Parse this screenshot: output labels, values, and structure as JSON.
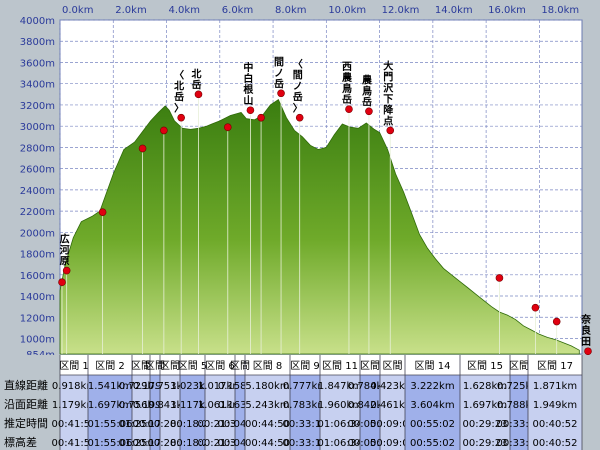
{
  "chart_data": {
    "type": "area",
    "title": "",
    "xlabel": "",
    "ylabel": "",
    "x_ticks": [
      "0.0km",
      "2.0km",
      "4.0km",
      "6.0km",
      "8.0km",
      "10.0km",
      "12.0km",
      "14.0km",
      "16.0km",
      "18.0km"
    ],
    "x_tick_values": [
      0,
      2,
      4,
      6,
      8,
      10,
      12,
      14,
      16,
      18
    ],
    "xlim": [
      0,
      19.6
    ],
    "y_ticks": [
      "4000m",
      "3800m",
      "3600m",
      "3400m",
      "3200m",
      "3000m",
      "2800m",
      "2600m",
      "2400m",
      "2200m",
      "2000m",
      "1800m",
      "1600m",
      "1400m",
      "1200m",
      "1000m",
      "854m"
    ],
    "y_tick_values": [
      4000,
      3800,
      3600,
      3400,
      3200,
      3000,
      2800,
      2600,
      2400,
      2200,
      2000,
      1800,
      1600,
      1400,
      1200,
      1000,
      854
    ],
    "ylim": [
      854,
      4000
    ],
    "grid": true,
    "elevation_profile": {
      "x": [
        0,
        0.2,
        0.5,
        0.8,
        1.2,
        1.5,
        2.0,
        2.4,
        2.8,
        3.1,
        3.4,
        3.7,
        3.95,
        4.1,
        4.3,
        4.6,
        4.9,
        5.2,
        5.5,
        5.7,
        6.0,
        6.4,
        6.8,
        7.0,
        7.3,
        7.6,
        7.9,
        8.2,
        8.5,
        8.8,
        9.1,
        9.4,
        9.7,
        10.0,
        10.3,
        10.6,
        10.9,
        11.2,
        11.5,
        11.8,
        12.0,
        12.3,
        12.6,
        12.9,
        13.2,
        13.5,
        13.8,
        14.1,
        14.4,
        14.7,
        15.0,
        15.3,
        15.6,
        15.9,
        16.2,
        16.5,
        16.8,
        17.1,
        17.4,
        17.7,
        18.0,
        18.3,
        18.6,
        18.9,
        19.2,
        19.5
      ],
      "y": [
        1450,
        1700,
        1950,
        2100,
        2150,
        2200,
        2550,
        2780,
        2850,
        2950,
        3050,
        3130,
        3190,
        3150,
        3050,
        2980,
        2970,
        2980,
        3000,
        3020,
        3050,
        3100,
        3130,
        3070,
        3060,
        3100,
        3200,
        3250,
        3080,
        2960,
        2900,
        2820,
        2780,
        2800,
        2920,
        3020,
        2990,
        2980,
        3030,
        2970,
        2940,
        2780,
        2550,
        2380,
        2180,
        1980,
        1850,
        1750,
        1660,
        1600,
        1540,
        1480,
        1420,
        1360,
        1300,
        1250,
        1220,
        1180,
        1120,
        1080,
        1040,
        1010,
        990,
        960,
        930,
        890
      ]
    },
    "points": [
      {
        "label": "広河原",
        "x": 0.25,
        "y": 1640
      },
      {
        "label": "",
        "x": 0.0,
        "y": 1530
      },
      {
        "label": "",
        "x": 1.6,
        "y": 2190
      },
      {
        "label": "",
        "x": 3.1,
        "y": 2790
      },
      {
        "label": "",
        "x": 3.9,
        "y": 2960
      },
      {
        "label": "〈北岳〉",
        "x": 4.55,
        "y": 3080
      },
      {
        "label": "北岳",
        "x": 5.2,
        "y": 3300
      },
      {
        "label": "",
        "x": 6.3,
        "y": 2990
      },
      {
        "label": "中白根山",
        "x": 7.15,
        "y": 3150
      },
      {
        "label": "",
        "x": 7.55,
        "y": 3080
      },
      {
        "label": "間ノ岳",
        "x": 8.3,
        "y": 3310
      },
      {
        "label": "〈間ノ岳〉",
        "x": 9.0,
        "y": 3080
      },
      {
        "label": "西農鳥岳",
        "x": 10.85,
        "y": 3160
      },
      {
        "label": "農鳥岳",
        "x": 11.6,
        "y": 3140
      },
      {
        "label": "大門沢下降点",
        "x": 12.4,
        "y": 2960
      },
      {
        "label": "",
        "x": 16.5,
        "y": 1570
      },
      {
        "label": "",
        "x": 17.85,
        "y": 1290
      },
      {
        "label": "",
        "x": 18.65,
        "y": 1160
      },
      {
        "label": "奈良田",
        "x": 20.0,
        "y": 880
      }
    ],
    "table": {
      "row_labels": [
        "直線距離",
        "沿面距離",
        "推定時間",
        "標高差"
      ],
      "sections": [
        {
          "name": "区間 1",
          "values": [
            "0.918km",
            "1.179km",
            "00:41:55",
            "00:41:55"
          ]
        },
        {
          "name": "区間 2",
          "values": [
            "1.541km",
            "1.697km",
            "01:55:06",
            "01:55:06"
          ]
        },
        {
          "name": "区間",
          "values": [
            "0.729km",
            "0.756km",
            "01:25:17",
            "01:25:17"
          ]
        },
        {
          "name": "区間",
          "values": [
            "0.179km",
            "0.199km",
            "00:17:48",
            "00:17:48"
          ]
        },
        {
          "name": "区間",
          "values": [
            "0.753km",
            "0.843km",
            "00:28:18",
            "00:28:18"
          ]
        },
        {
          "name": "区間 5",
          "values": [
            "1.023km",
            "1.117km",
            "00:18:23",
            "00:18:23"
          ]
        },
        {
          "name": "区間 6",
          "values": [
            "1.017km",
            "1.061km",
            "00:21:35",
            "00:21:35"
          ]
        },
        {
          "name": "区間",
          "values": [
            "0.158km",
            "0.163km",
            "00:04:40",
            "00:04:40"
          ]
        },
        {
          "name": "区間 8",
          "values": [
            "5.180km",
            "5.243km",
            "00:44:50",
            "00:44:50"
          ]
        },
        {
          "name": "区間 9",
          "values": [
            "0.777km",
            "0.783km",
            "00:33:10",
            "00:33:10"
          ]
        },
        {
          "name": "区間 11",
          "values": [
            "1.847km",
            "1.960km",
            "01:06:34",
            "01:06:34"
          ]
        },
        {
          "name": "区間",
          "values": [
            "0.784km",
            "0.842km",
            "00:05:10",
            "00:05:10"
          ]
        },
        {
          "name": "区間",
          "values": [
            "0.423km",
            "0.461km",
            "00:09:02",
            "00:09:02"
          ]
        },
        {
          "name": "区間 14",
          "values": [
            "3.222km",
            "3.604km",
            "00:55:02",
            "00:55:02"
          ]
        },
        {
          "name": "区間 15",
          "values": [
            "1.628km",
            "1.697km",
            "00:29:23",
            "00:29:23"
          ]
        },
        {
          "name": "区間",
          "values": [
            "0.725km",
            "0.788km",
            "00:33:12",
            "00:33:12"
          ]
        },
        {
          "name": "区間 17",
          "values": [
            "1.871km",
            "1.949km",
            "00:40:52",
            "00:40:52"
          ]
        }
      ]
    }
  }
}
